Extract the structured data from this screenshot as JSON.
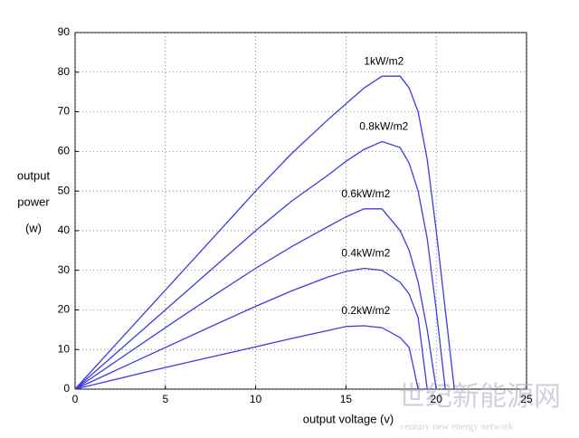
{
  "chart_data": {
    "type": "line",
    "ylabel": [
      "output",
      "power",
      "(w)"
    ],
    "xlabel": "output voltage (v)",
    "x": [
      0,
      2,
      4,
      6,
      8,
      10,
      12,
      14,
      15,
      16,
      17,
      18,
      18.5,
      19,
      19.5,
      20,
      20.5,
      21
    ],
    "series": [
      {
        "name": "1kW/m2",
        "color": "#3c3ce0",
        "values": [
          0,
          10,
          20,
          30,
          40,
          50,
          59.5,
          68,
          72,
          76,
          79,
          79,
          76,
          70,
          58,
          40,
          20,
          0
        ]
      },
      {
        "name": "0.8kW/m2",
        "color": "#3c3ce0",
        "values": [
          0,
          8,
          16,
          24,
          32,
          40,
          47.5,
          54,
          57.5,
          60.5,
          62.5,
          61,
          57,
          50,
          38,
          20,
          0,
          null
        ]
      },
      {
        "name": "0.6kW/m2",
        "color": "#3c3ce0",
        "values": [
          0,
          6.2,
          12.4,
          18.6,
          24.6,
          30.5,
          36,
          41,
          43.5,
          45.5,
          45.5,
          40,
          35,
          27,
          15,
          0,
          null,
          null
        ]
      },
      {
        "name": "0.4kW/m2",
        "color": "#3c3ce0",
        "values": [
          0,
          4.2,
          8.4,
          12.6,
          16.8,
          20.9,
          24.8,
          28.3,
          29.7,
          30.5,
          30,
          27,
          24,
          18,
          0,
          null,
          null,
          null
        ]
      },
      {
        "name": "0.2kW/m2",
        "color": "#3c3ce0",
        "values": [
          0,
          2.2,
          4.4,
          6.5,
          8.6,
          10.7,
          12.8,
          14.8,
          15.8,
          16,
          15.5,
          13,
          10.5,
          0,
          null,
          null,
          null,
          null
        ]
      }
    ],
    "xlim": [
      0,
      25
    ],
    "xticks": [
      0,
      5,
      10,
      15,
      20,
      25
    ],
    "ylim": [
      0,
      90
    ],
    "yticks": [
      0,
      10,
      20,
      30,
      40,
      50,
      60,
      70,
      80,
      90
    ],
    "grid": true,
    "watermark": [
      "世纪新能源网",
      "century new energy network"
    ]
  }
}
